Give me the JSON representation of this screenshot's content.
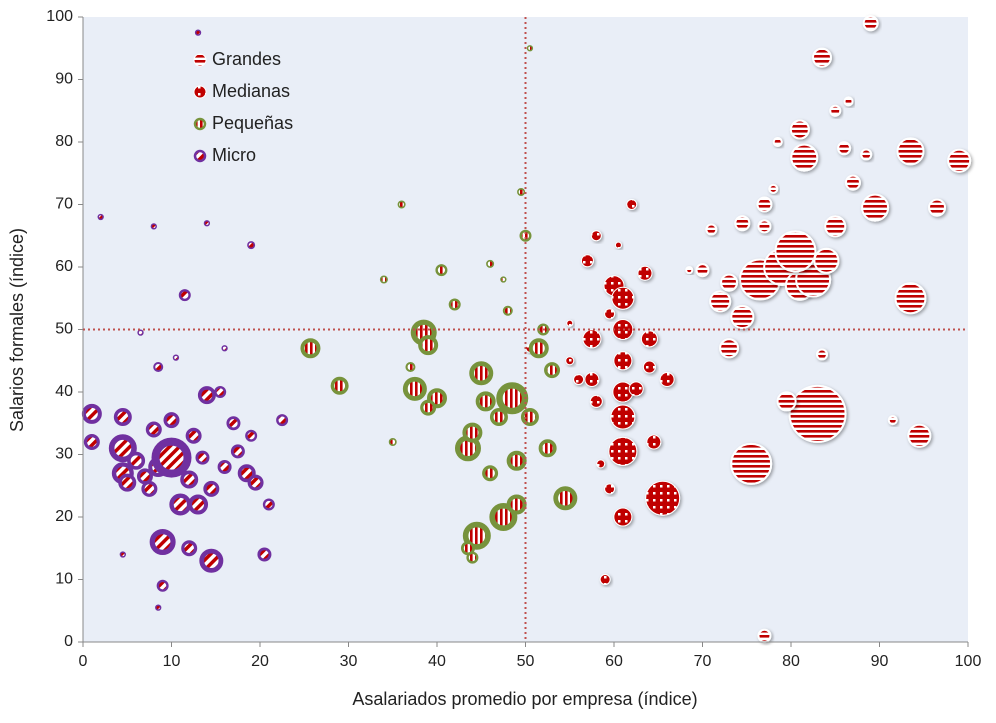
{
  "chart_data": {
    "type": "bubble",
    "x_label": "Asalariados promedio por empresa (índice)",
    "y_label": "Salarios formales (índice)",
    "xlim": [
      0,
      100
    ],
    "ylim": [
      0,
      100
    ],
    "xticks": [
      0,
      10,
      20,
      30,
      40,
      50,
      60,
      70,
      80,
      90,
      100
    ],
    "yticks": [
      0,
      10,
      20,
      30,
      40,
      50,
      60,
      70,
      80,
      90,
      100
    ],
    "vline": 50,
    "hline": 50,
    "legend": "upper left",
    "series": [
      {
        "name": "Grandes",
        "color": "#c00000",
        "x": [
          77,
          75.5,
          83,
          94.5,
          79.5,
          73,
          74.5,
          76.5,
          79,
          81,
          82.5,
          80.5,
          84,
          85,
          89.5,
          93.5,
          96.5,
          93.5,
          99,
          81.5,
          83.5,
          89,
          81,
          87,
          77,
          86,
          88.5,
          71,
          74.5,
          72,
          73,
          77,
          85,
          86.5,
          70,
          83.5,
          91.5,
          68.5,
          78,
          78.5
        ],
        "y": [
          1,
          28.5,
          36.5,
          33,
          38.5,
          47,
          52,
          58,
          60,
          57,
          58,
          62.5,
          61,
          66.5,
          69.5,
          55,
          69.5,
          78.5,
          77,
          77.5,
          93.5,
          99,
          82,
          73.5,
          70,
          79,
          78,
          66,
          67,
          54.5,
          57.5,
          66.5,
          85,
          86.5,
          59.5,
          46,
          35.5,
          59.5,
          72.5,
          80
        ],
        "size": [
          6,
          20,
          28,
          11,
          9,
          9,
          11,
          20,
          18,
          14,
          17,
          20,
          12,
          10,
          13,
          15,
          8,
          13,
          11,
          13,
          9,
          7,
          9,
          7,
          7,
          6,
          5,
          5,
          7,
          10,
          8,
          6,
          5,
          4,
          6,
          5,
          4,
          3,
          4,
          4
        ]
      },
      {
        "name": "Medianas",
        "color": "#c00000",
        "x": [
          50.5,
          55,
          55,
          56,
          57.5,
          57.5,
          58,
          57,
          58,
          60,
          61,
          61,
          61,
          61,
          61,
          61,
          65.5,
          61,
          59.5,
          59,
          62,
          63.5,
          64,
          64,
          66,
          64.5,
          59.5,
          62.5,
          58.5,
          60.5
        ],
        "y": [
          47,
          51,
          45,
          42,
          48.5,
          42,
          38.5,
          61,
          65,
          57,
          55,
          50,
          45,
          40,
          36,
          30.5,
          23,
          20,
          24.5,
          10,
          70,
          59,
          48.5,
          44,
          42,
          32,
          52.5,
          40.5,
          28.5,
          63.5
        ],
        "size": [
          4,
          3,
          4,
          5,
          9,
          7,
          6,
          6,
          5,
          10,
          11,
          10,
          9,
          10,
          12,
          14,
          17,
          9,
          5,
          5,
          5,
          7,
          8,
          6,
          7,
          7,
          5,
          7,
          4,
          3
        ]
      },
      {
        "name": "Pequeñas",
        "color": "#77933c",
        "x": [
          25.7,
          29,
          34,
          35,
          36,
          37.5,
          38.5,
          39,
          40,
          39,
          40.5,
          42,
          43.5,
          44,
          44.5,
          45,
          45.5,
          46,
          47,
          47.5,
          48.5,
          49,
          49.5,
          50,
          50.5,
          49,
          50.5,
          51.5,
          52.5,
          54.5,
          53,
          46,
          48,
          43.5,
          44,
          47.5,
          52,
          37
        ],
        "y": [
          47,
          41,
          58,
          32,
          70,
          40.5,
          49.5,
          47.5,
          39,
          37.5,
          59.5,
          54,
          31,
          33.5,
          17,
          43,
          38.5,
          27,
          36,
          20,
          39,
          29,
          72,
          65,
          95,
          22,
          36,
          47,
          31,
          23,
          43.5,
          60.5,
          53,
          15,
          13.5,
          58,
          50,
          44
        ],
        "size": [
          10,
          9,
          4,
          4,
          4,
          12,
          13,
          10,
          10,
          8,
          6,
          6,
          13,
          10,
          14,
          12,
          10,
          8,
          9,
          14,
          16,
          10,
          4,
          6,
          3,
          10,
          9,
          10,
          9,
          12,
          8,
          4,
          5,
          7,
          6,
          3,
          6,
          5
        ]
      },
      {
        "name": "Micro",
        "color": "#7030a0",
        "x": [
          1,
          1,
          4.5,
          4.5,
          4.5,
          5,
          6,
          7,
          7.5,
          8,
          8.5,
          10,
          11,
          12,
          12.5,
          13,
          10,
          14,
          14.5,
          9,
          12,
          17,
          18.5,
          19.5,
          20.5,
          21,
          19,
          22.5,
          9,
          11.5,
          2,
          8,
          14,
          19,
          13,
          6.5,
          16,
          10.5,
          8.5,
          4.5,
          8.5,
          15.5,
          17.5,
          16,
          14.5,
          13.5
        ],
        "y": [
          36.5,
          32,
          36,
          31,
          27,
          25.5,
          29,
          26.5,
          24.5,
          34,
          28,
          29.5,
          22,
          26,
          33,
          22,
          35.5,
          39.5,
          13,
          16,
          15,
          35,
          27,
          25.5,
          14,
          22,
          33,
          35.5,
          9,
          55.5,
          68,
          66.5,
          67,
          63.5,
          97.5,
          49.5,
          47,
          45.5,
          44,
          14,
          5.5,
          40,
          30.5,
          28,
          24.5,
          29.5
        ],
        "size": [
          10,
          8,
          9,
          14,
          11,
          9,
          9,
          8,
          8,
          8,
          10,
          20,
          11,
          9,
          8,
          10,
          8,
          9,
          12,
          13,
          8,
          7,
          9,
          8,
          7,
          6,
          6,
          6,
          6,
          6,
          3,
          3,
          3,
          4,
          3,
          3,
          3,
          3,
          5,
          3,
          3,
          6,
          7,
          7,
          8,
          7
        ]
      }
    ]
  }
}
